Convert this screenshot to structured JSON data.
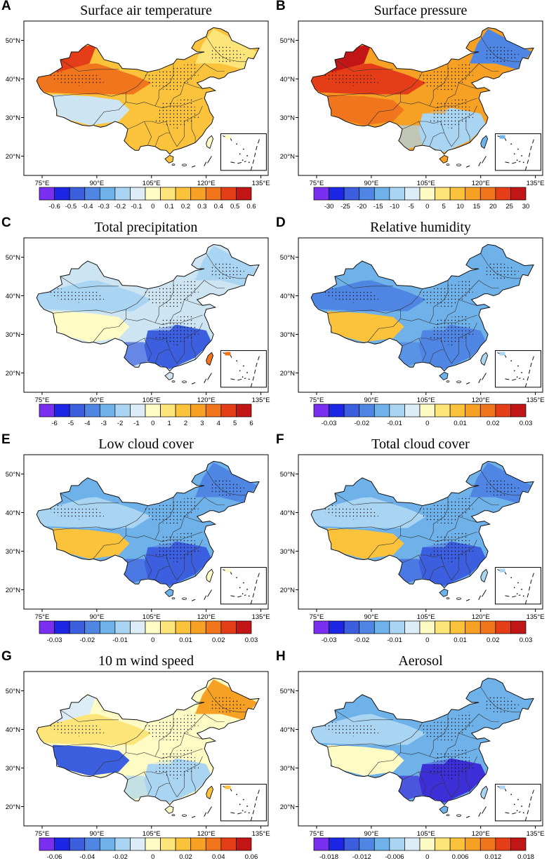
{
  "figure": {
    "panel_letters": [
      "A",
      "B",
      "C",
      "D",
      "E",
      "F",
      "G",
      "H"
    ]
  },
  "chart_data": [
    {
      "panel": "A",
      "type": "heatmap",
      "title": "Surface air temperature",
      "x_ticks": [
        "75°E",
        "90°E",
        "105°E",
        "120°E",
        "135°E"
      ],
      "y_ticks": [
        "50°N",
        "40°N",
        "30°N",
        "20°N"
      ],
      "colorbar": {
        "labels": [
          "-0.6",
          "-0.5",
          "-0.4",
          "-0.3",
          "-0.2",
          "-0.1",
          "0",
          "0.1",
          "0.2",
          "0.3",
          "0.4",
          "0.5",
          "0.6"
        ],
        "colors": [
          "#7a2ff0",
          "#1e26e6",
          "#3c5fe0",
          "#4f86e3",
          "#6fb1e9",
          "#a9d4f2",
          "#dcedf7",
          "#fefbc5",
          "#fde57a",
          "#fbc33c",
          "#f6a024",
          "#f1751c",
          "#e53d17",
          "#c21616"
        ]
      },
      "dominant": "warm",
      "patterns": {
        "base": "#fbc33c",
        "west": "#f1751c",
        "northwest": "#e53d17",
        "tibet_center": "#cde5f3",
        "southeast": "#fbc33c",
        "northeast": "#fde57a",
        "taiwan": "#fefbc5"
      }
    },
    {
      "panel": "B",
      "type": "heatmap",
      "title": "Surface pressure",
      "x_ticks": [
        "75°E",
        "90°E",
        "105°E",
        "120°E",
        "135°E"
      ],
      "y_ticks": [
        "50°N",
        "40°N",
        "30°N",
        "20°N"
      ],
      "colorbar": {
        "labels": [
          "-30",
          "-25",
          "-20",
          "-15",
          "-10",
          "-5",
          "0",
          "5",
          "10",
          "15",
          "20",
          "25",
          "30"
        ],
        "colors": [
          "#7a2ff0",
          "#1e26e6",
          "#3c5fe0",
          "#4f86e3",
          "#6fb1e9",
          "#a9d4f2",
          "#dcedf7",
          "#fefbc5",
          "#fde57a",
          "#fbc33c",
          "#f6a024",
          "#f1751c",
          "#e53d17",
          "#c21616"
        ]
      },
      "dominant": "west-east",
      "patterns": {
        "base": "#f6a024",
        "west": "#e53d17",
        "northwest": "#c21616",
        "tibet_center": "#f1751c",
        "southeast": "#a9d4f2",
        "northeast": "#4f86e3",
        "taiwan": "#6fb1e9"
      }
    },
    {
      "panel": "C",
      "type": "heatmap",
      "title": "Total precipitation",
      "x_ticks": [
        "75°E",
        "90°E",
        "105°E",
        "120°E",
        "135°E"
      ],
      "y_ticks": [
        "50°N",
        "40°N",
        "30°N",
        "20°N"
      ],
      "colorbar": {
        "labels": [
          "-6",
          "-5",
          "-4",
          "-3",
          "-2",
          "-1",
          "0",
          "1",
          "2",
          "3",
          "4",
          "5",
          "6"
        ],
        "colors": [
          "#7a2ff0",
          "#1e26e6",
          "#3c5fe0",
          "#4f86e3",
          "#6fb1e9",
          "#a9d4f2",
          "#dcedf7",
          "#fefbc5",
          "#fde57a",
          "#fbc33c",
          "#f6a024",
          "#f1751c",
          "#e53d17",
          "#c21616"
        ]
      },
      "dominant": "cool",
      "patterns": {
        "base": "#cde5f3",
        "west": "#a9d4f2",
        "northwest": "#cde5f3",
        "tibet_center": "#fefbc5",
        "southeast": "#3c5fe0",
        "northeast": "#a9d4f2",
        "taiwan": "#f1751c"
      }
    },
    {
      "panel": "D",
      "type": "heatmap",
      "title": "Relative humidity",
      "x_ticks": [
        "75°E",
        "90°E",
        "105°E",
        "120°E",
        "135°E"
      ],
      "y_ticks": [
        "50°N",
        "40°N",
        "30°N",
        "20°N"
      ],
      "colorbar": {
        "labels": [
          "-0.03",
          "-0.02",
          "-0.01",
          "0",
          "0.01",
          "0.02",
          "0.03"
        ],
        "colors": [
          "#7a2ff0",
          "#1e26e6",
          "#3c5fe0",
          "#4f86e3",
          "#6fb1e9",
          "#a9d4f2",
          "#dcedf7",
          "#fefbc5",
          "#fde57a",
          "#fbc33c",
          "#f6a024",
          "#f1751c",
          "#e53d17",
          "#c21616"
        ]
      },
      "dominant": "cool",
      "patterns": {
        "base": "#6fb1e9",
        "west": "#4f86e3",
        "northwest": "#6fb1e9",
        "tibet_center": "#fbc33c",
        "southeast": "#4f86e3",
        "northeast": "#6fb1e9",
        "taiwan": "#a9d4f2"
      }
    },
    {
      "panel": "E",
      "type": "heatmap",
      "title": "Low cloud cover",
      "x_ticks": [
        "75°E",
        "90°E",
        "105°E",
        "120°E",
        "135°E"
      ],
      "y_ticks": [
        "50°N",
        "40°N",
        "30°N",
        "20°N"
      ],
      "colorbar": {
        "labels": [
          "-0.03",
          "-0.02",
          "-0.01",
          "0",
          "0.01",
          "0.02",
          "0.03"
        ],
        "colors": [
          "#7a2ff0",
          "#1e26e6",
          "#3c5fe0",
          "#4f86e3",
          "#6fb1e9",
          "#a9d4f2",
          "#dcedf7",
          "#fefbc5",
          "#fde57a",
          "#fbc33c",
          "#f6a024",
          "#f1751c",
          "#e53d17",
          "#c21616"
        ]
      },
      "dominant": "cool",
      "patterns": {
        "base": "#6fb1e9",
        "west": "#a9d4f2",
        "northwest": "#6fb1e9",
        "tibet_center": "#fbc33c",
        "southeast": "#3c5fe0",
        "northeast": "#4f86e3",
        "taiwan": "#fefbc5"
      }
    },
    {
      "panel": "F",
      "type": "heatmap",
      "title": "Total cloud cover",
      "x_ticks": [
        "75°E",
        "90°E",
        "105°E",
        "120°E",
        "135°E"
      ],
      "y_ticks": [
        "50°N",
        "40°N",
        "30°N",
        "20°N"
      ],
      "colorbar": {
        "labels": [
          "-0.03",
          "-0.02",
          "-0.01",
          "0",
          "0.01",
          "0.02",
          "0.03"
        ],
        "colors": [
          "#7a2ff0",
          "#1e26e6",
          "#3c5fe0",
          "#4f86e3",
          "#6fb1e9",
          "#a9d4f2",
          "#dcedf7",
          "#fefbc5",
          "#fde57a",
          "#fbc33c",
          "#f6a024",
          "#f1751c",
          "#e53d17",
          "#c21616"
        ]
      },
      "dominant": "cool",
      "patterns": {
        "base": "#6fb1e9",
        "west": "#a9d4f2",
        "northwest": "#6fb1e9",
        "tibet_center": "#fbc33c",
        "southeast": "#3c5fe0",
        "northeast": "#4f86e3",
        "taiwan": "#a9d4f2"
      }
    },
    {
      "panel": "G",
      "type": "heatmap",
      "title": "10 m wind speed",
      "x_ticks": [
        "75°E",
        "90°E",
        "105°E",
        "120°E",
        "135°E"
      ],
      "y_ticks": [
        "50°N",
        "40°N",
        "30°N",
        "20°N"
      ],
      "colorbar": {
        "labels": [
          "-0.06",
          "-0.04",
          "-0.02",
          "0",
          "0.02",
          "0.04",
          "0.06"
        ],
        "colors": [
          "#7a2ff0",
          "#1e26e6",
          "#3c5fe0",
          "#4f86e3",
          "#6fb1e9",
          "#a9d4f2",
          "#dcedf7",
          "#fefbc5",
          "#fde57a",
          "#fbc33c",
          "#f6a024",
          "#f1751c",
          "#e53d17",
          "#c21616"
        ]
      },
      "dominant": "mixed",
      "patterns": {
        "base": "#fefbc5",
        "west": "#fde57a",
        "northwest": "#dcedf7",
        "tibet_center": "#3c5fe0",
        "southeast": "#a9d4f2",
        "northeast": "#f6a024",
        "taiwan": "#fbc33c"
      }
    },
    {
      "panel": "H",
      "type": "heatmap",
      "title": "Aerosol",
      "x_ticks": [
        "75°E",
        "90°E",
        "105°E",
        "120°E",
        "135°E"
      ],
      "y_ticks": [
        "50°N",
        "40°N",
        "30°N",
        "20°N"
      ],
      "colorbar": {
        "labels": [
          "-0.018",
          "-0.012",
          "-0.006",
          "0",
          "0.006",
          "0.012",
          "0.018"
        ],
        "colors": [
          "#7a2ff0",
          "#1e26e6",
          "#3c5fe0",
          "#4f86e3",
          "#6fb1e9",
          "#a9d4f2",
          "#dcedf7",
          "#fefbc5",
          "#fde57a",
          "#fbc33c",
          "#f6a024",
          "#f1751c",
          "#e53d17",
          "#c21616"
        ]
      },
      "dominant": "cool",
      "patterns": {
        "base": "#6fb1e9",
        "west": "#a9d4f2",
        "northwest": "#6fb1e9",
        "tibet_center": "#fefbc5",
        "southeast": "#3c2fd8",
        "northeast": "#6fb1e9",
        "taiwan": "#a9d4f2"
      }
    }
  ]
}
